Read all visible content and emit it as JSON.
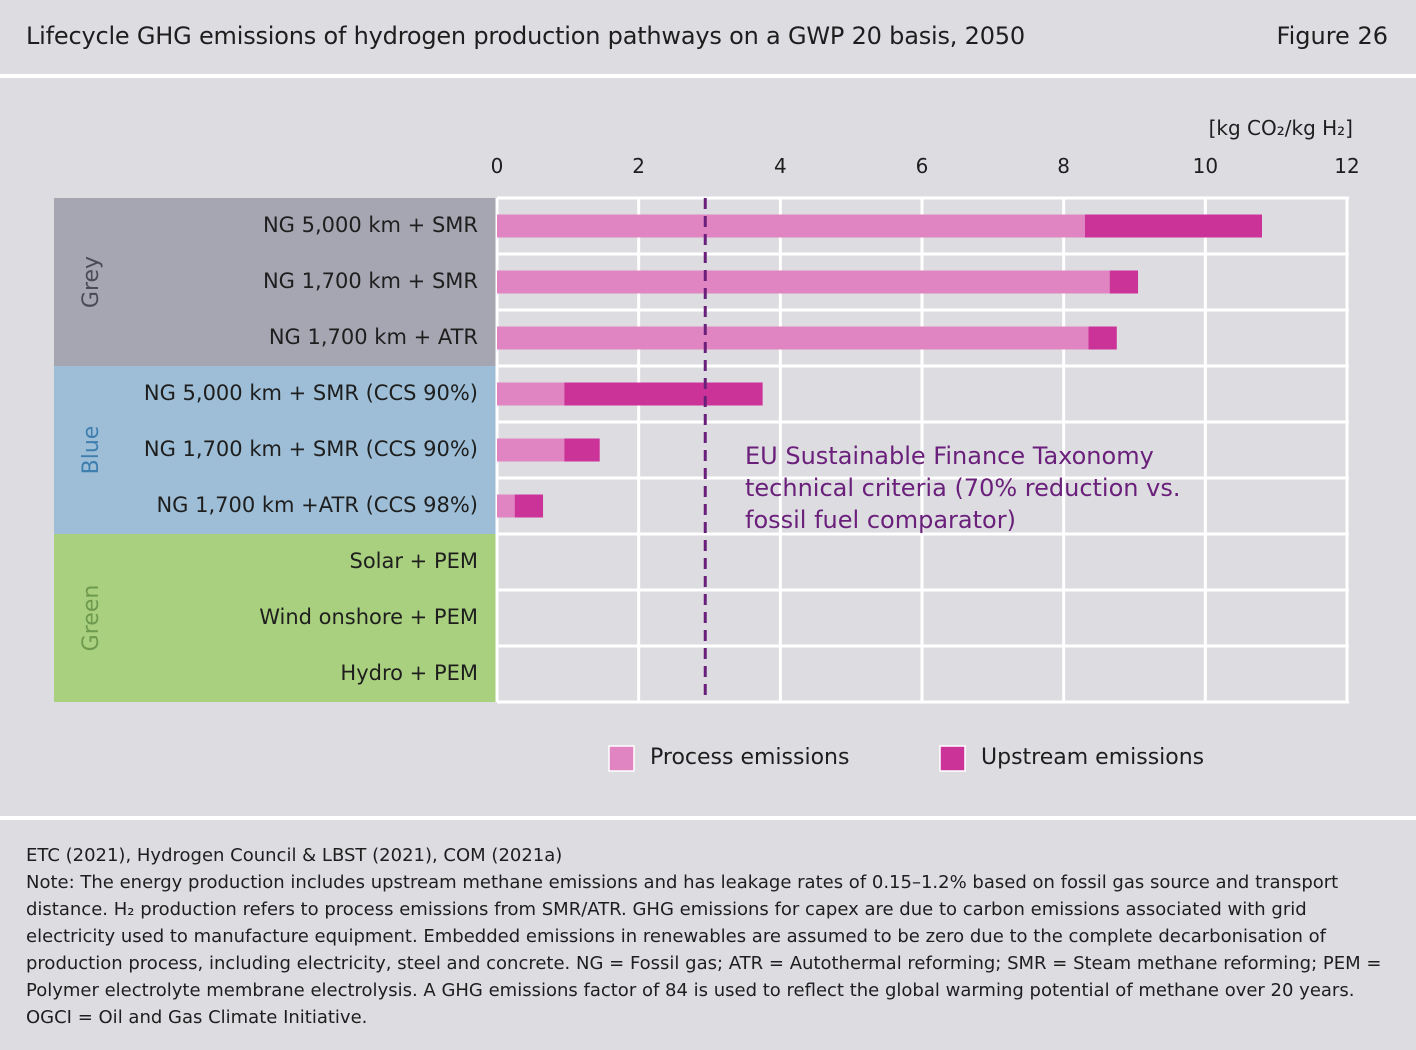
{
  "header": {
    "title": "Lifecycle GHG emissions of hydrogen production pathways on a GWP 20 basis, 2050",
    "figure": "Figure 26"
  },
  "colors": {
    "page_bg": "#dcdce1",
    "grey_band": "#a6a5b2",
    "blue_band": "#9dbed6",
    "green_band": "#a9d07e",
    "grey_label": "#4b4b55",
    "blue_label": "#3f7fb0",
    "green_label": "#6e9a4f",
    "process": "#e085c2",
    "upstream": "#cc3399",
    "threshold": "#6a1f7a",
    "gridline": "#ffffff"
  },
  "chart_data": {
    "type": "bar",
    "orientation": "horizontal",
    "stacked": true,
    "unit_label": "[kg CO₂/kg H₂]",
    "xlim": [
      0,
      12
    ],
    "xticks": [
      "0",
      "2",
      "4",
      "6",
      "8",
      "10",
      "12"
    ],
    "grid": true,
    "legend_position": "bottom",
    "groups": [
      {
        "name": "Grey",
        "start": 0,
        "end": 2
      },
      {
        "name": "Blue",
        "start": 3,
        "end": 5
      },
      {
        "name": "Green",
        "start": 6,
        "end": 8
      }
    ],
    "categories": [
      "NG 5,000 km + SMR",
      "NG 1,700 km + SMR",
      "NG 1,700 km + ATR",
      "NG 5,000 km + SMR (CCS 90%)",
      "NG 1,700 km + SMR (CCS 90%)",
      "NG 1,700 km +ATR (CCS 98%)",
      "Solar + PEM",
      "Wind onshore + PEM",
      "Hydro + PEM"
    ],
    "series": [
      {
        "name": "Process emissions",
        "values": [
          8.3,
          8.65,
          8.35,
          0.95,
          0.95,
          0.25,
          0,
          0,
          0
        ]
      },
      {
        "name": "Upstream emissions",
        "values": [
          2.5,
          0.4,
          0.4,
          2.8,
          0.5,
          0.4,
          0,
          0,
          0
        ]
      }
    ],
    "threshold": {
      "value": 2.94,
      "annotation": [
        "EU Sustainable Finance Taxonomy",
        "technical criteria (70% reduction vs.",
        "fossil fuel comparator)"
      ]
    }
  },
  "footer": {
    "source": "ETC (2021), Hydrogen Council & LBST (2021), COM (2021a)",
    "note": "Note: The energy production includes upstream methane emissions and has leakage rates of 0.15–1.2% based on fossil gas source and transport distance. H₂ production refers to process emissions from SMR/ATR. GHG emissions for capex are due to carbon emissions associated with grid electricity used to manufacture equipment. Embedded emissions in renewables are assumed to be zero due to the complete decarbonisation of production process, including electricity, steel and concrete. NG = Fossil gas; ATR = Autothermal reforming; SMR = Steam methane reforming; PEM = Polymer electrolyte membrane electrolysis. A GHG emissions factor of 84 is used to reflect the global warming potential of methane over 20 years. OGCI = Oil and Gas Climate Initiative."
  }
}
